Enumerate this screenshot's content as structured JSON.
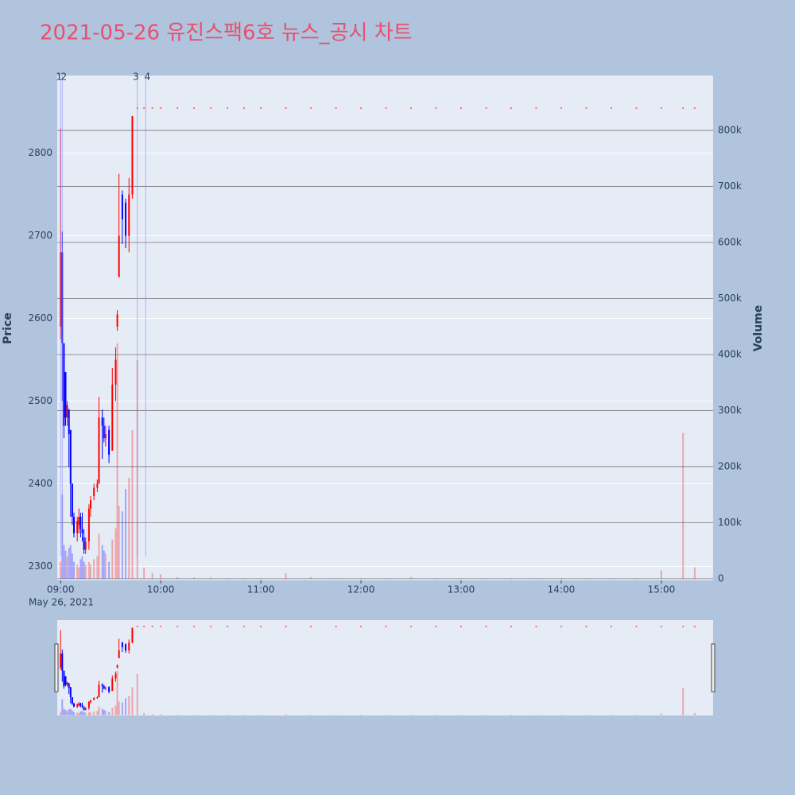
{
  "chart_data": {
    "type": "candlestick",
    "title": "2021-05-26 유진스팩6호 뉴스_공시 차트",
    "y_label": "Price",
    "y2_label": "Volume",
    "increasing_color": "#ff0000",
    "decreasing_color": "#0000ff",
    "x": [
      "09:00",
      "09:01",
      "09:02",
      "09:03",
      "09:04",
      "09:05",
      "09:06",
      "09:07",
      "09:08",
      "09:10",
      "09:11",
      "09:12",
      "09:13",
      "09:14",
      "09:15",
      "09:17",
      "09:18",
      "09:20",
      "09:22",
      "09:23",
      "09:25",
      "09:26",
      "09:27",
      "09:29",
      "09:31",
      "09:33",
      "09:34",
      "09:35",
      "09:37",
      "09:39",
      "09:41",
      "09:43",
      "09:46",
      "09:50",
      "09:55",
      "10:00",
      "10:10",
      "10:20",
      "10:30",
      "10:40",
      "10:50",
      "11:00",
      "11:15",
      "11:30",
      "11:45",
      "12:00",
      "12:15",
      "12:30",
      "12:45",
      "13:00",
      "13:15",
      "13:30",
      "13:45",
      "14:00",
      "14:15",
      "14:30",
      "14:45",
      "15:00",
      "15:13",
      "15:20"
    ],
    "open": [
      2590,
      2680,
      2570,
      2535,
      2480,
      2490,
      2465,
      2400,
      2360,
      2340,
      2350,
      2360,
      2345,
      2335,
      2320,
      2330,
      2370,
      2385,
      2395,
      2400,
      2480,
      2470,
      2455,
      2465,
      2440,
      2520,
      2590,
      2650,
      2750,
      2740,
      2700,
      2750,
      2855,
      2855,
      2855,
      2855,
      2855,
      2855,
      2855,
      2855,
      2855,
      2855,
      2855,
      2855,
      2855,
      2855,
      2855,
      2855,
      2855,
      2855,
      2855,
      2855,
      2855,
      2855,
      2855,
      2855,
      2855,
      2855,
      2855,
      2855
    ],
    "high": [
      2830,
      2705,
      2570,
      2535,
      2500,
      2490,
      2465,
      2400,
      2365,
      2360,
      2370,
      2365,
      2365,
      2345,
      2335,
      2375,
      2385,
      2400,
      2405,
      2505,
      2490,
      2480,
      2470,
      2470,
      2540,
      2565,
      2610,
      2775,
      2755,
      2745,
      2770,
      2845,
      2855,
      2855,
      2855,
      2855,
      2855,
      2855,
      2855,
      2855,
      2855,
      2855,
      2855,
      2855,
      2855,
      2855,
      2855,
      2855,
      2855,
      2855,
      2855,
      2855,
      2855,
      2855,
      2855,
      2855,
      2855,
      2855,
      2855,
      2855
    ],
    "low": [
      2575,
      2500,
      2455,
      2470,
      2470,
      2420,
      2360,
      2350,
      2335,
      2330,
      2340,
      2335,
      2330,
      2315,
      2315,
      2320,
      2360,
      2380,
      2390,
      2400,
      2430,
      2450,
      2445,
      2425,
      2440,
      2500,
      2585,
      2650,
      2690,
      2685,
      2680,
      2745,
      2855,
      2855,
      2855,
      2855,
      2855,
      2855,
      2855,
      2855,
      2855,
      2855,
      2855,
      2855,
      2855,
      2855,
      2855,
      2855,
      2855,
      2855,
      2855,
      2855,
      2855,
      2855,
      2855,
      2855,
      2855,
      2855,
      2855,
      2855
    ],
    "close": [
      2680,
      2570,
      2470,
      2480,
      2495,
      2460,
      2400,
      2360,
      2340,
      2355,
      2360,
      2345,
      2340,
      2320,
      2330,
      2370,
      2380,
      2395,
      2400,
      2480,
      2470,
      2455,
      2460,
      2435,
      2520,
      2550,
      2605,
      2700,
      2720,
      2700,
      2750,
      2845,
      2855,
      2855,
      2855,
      2855,
      2855,
      2855,
      2855,
      2855,
      2855,
      2855,
      2855,
      2855,
      2855,
      2855,
      2855,
      2855,
      2855,
      2855,
      2855,
      2855,
      2855,
      2855,
      2855,
      2855,
      2855,
      2855,
      2855,
      2855
    ],
    "volume": [
      30000,
      150000,
      60000,
      50000,
      40000,
      55000,
      60000,
      45000,
      30000,
      25000,
      20000,
      35000,
      40000,
      30000,
      25000,
      30000,
      25000,
      35000,
      40000,
      80000,
      60000,
      50000,
      45000,
      30000,
      70000,
      90000,
      420000,
      130000,
      120000,
      160000,
      180000,
      265000,
      390000,
      20000,
      10000,
      8000,
      3000,
      2000,
      2000,
      1000,
      1000,
      1000,
      10000,
      3000,
      1000,
      1000,
      1000,
      3000,
      1000,
      1000,
      1000,
      1000,
      1000,
      1000,
      1000,
      1000,
      1000,
      15000,
      260000,
      20000
    ],
    "annotations": [
      {
        "x": "09:00",
        "text": "1"
      },
      {
        "x": "09:01",
        "text": "2"
      },
      {
        "x": "09:46",
        "text": "3"
      },
      {
        "x": "09:51",
        "text": "4"
      }
    ],
    "xlim": [
      "08:58",
      "15:31"
    ],
    "xticks": [
      "09:00",
      "10:00",
      "11:00",
      "12:00",
      "13:00",
      "14:00",
      "15:00"
    ],
    "x_date_label": "May 26, 2021",
    "ylim": [
      2283,
      2894
    ],
    "yticks": [
      2300,
      2400,
      2500,
      2600,
      2700,
      2800
    ],
    "y2lim": [
      -3000,
      898000
    ],
    "y2ticks": [
      0,
      {
        "value": 100000,
        "label": "100k"
      },
      {
        "value": 200000,
        "label": "200k"
      },
      {
        "value": 300000,
        "label": "300k"
      },
      {
        "value": 400000,
        "label": "400k"
      },
      {
        "value": 500000,
        "label": "500k"
      },
      {
        "value": 600000,
        "label": "600k"
      },
      {
        "value": 700000,
        "label": "700k"
      },
      {
        "value": 800000,
        "label": "800k"
      }
    ],
    "grid": true
  }
}
